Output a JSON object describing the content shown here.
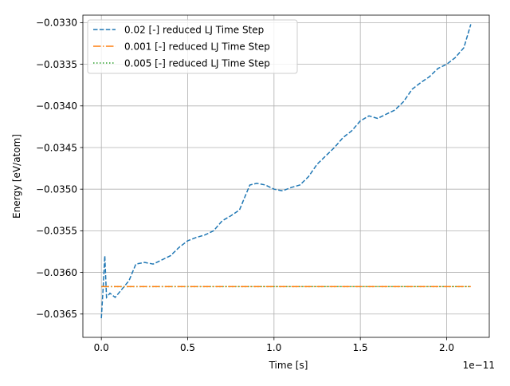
{
  "chart_data": {
    "type": "line",
    "xlabel": "Time [s]",
    "ylabel": "Energy [eV/atom]",
    "x_offset_label": "1e−11",
    "xlim": [
      -1.07e-12,
      2.247e-11
    ],
    "ylim": [
      -0.03678,
      -0.03291
    ],
    "x_ticks": [
      0.0,
      5e-12,
      1e-11,
      1.5e-11,
      2e-11
    ],
    "x_tick_labels": [
      "0.0",
      "0.5",
      "1.0",
      "1.5",
      "2.0"
    ],
    "y_ticks": [
      -0.0365,
      -0.036,
      -0.0355,
      -0.035,
      -0.0345,
      -0.034,
      -0.0335,
      -0.033
    ],
    "y_tick_labels": [
      "−0.0365",
      "−0.0360",
      "−0.0355",
      "−0.0350",
      "−0.0345",
      "−0.0340",
      "−0.0335",
      "−0.0330"
    ],
    "grid": true,
    "legend_position": "upper-left",
    "series": [
      {
        "name": "0.02 [-] reduced LJ Time Step",
        "color": "#1f77b4",
        "linestyle": "dashed",
        "x": [
          0,
          1e-13,
          2e-13,
          3e-13,
          5e-13,
          8e-13,
          1.2e-12,
          1.6e-12,
          2e-12,
          2.5e-12,
          3e-12,
          3.5e-12,
          4e-12,
          4.5e-12,
          5e-12,
          5.5e-12,
          6e-12,
          6.5e-12,
          7e-12,
          7.5e-12,
          8e-12,
          8.3e-12,
          8.6e-12,
          9e-12,
          9.5e-12,
          1e-11,
          1.05e-11,
          1.1e-11,
          1.15e-11,
          1.2e-11,
          1.25e-11,
          1.3e-11,
          1.35e-11,
          1.4e-11,
          1.45e-11,
          1.5e-11,
          1.55e-11,
          1.6e-11,
          1.65e-11,
          1.7e-11,
          1.75e-11,
          1.8e-11,
          1.85e-11,
          1.9e-11,
          1.95e-11,
          2e-11,
          2.05e-11,
          2.1e-11,
          2.14e-11
        ],
        "y": [
          -0.03655,
          -0.0362,
          -0.0358,
          -0.0363,
          -0.03625,
          -0.0363,
          -0.0362,
          -0.0361,
          -0.0359,
          -0.03588,
          -0.0359,
          -0.03585,
          -0.0358,
          -0.0357,
          -0.03562,
          -0.03558,
          -0.03555,
          -0.0355,
          -0.03538,
          -0.03532,
          -0.03525,
          -0.0351,
          -0.03495,
          -0.03493,
          -0.03495,
          -0.035,
          -0.03502,
          -0.03498,
          -0.03495,
          -0.03485,
          -0.0347,
          -0.0346,
          -0.0345,
          -0.03438,
          -0.0343,
          -0.03418,
          -0.03412,
          -0.03415,
          -0.0341,
          -0.03405,
          -0.03395,
          -0.0338,
          -0.03372,
          -0.03365,
          -0.03355,
          -0.0335,
          -0.03342,
          -0.0333,
          -0.03302
        ]
      },
      {
        "name": "0.001 [-] reduced LJ Time Step",
        "color": "#ff7f0e",
        "linestyle": "dashdot",
        "x": [
          0,
          2.14e-11
        ],
        "y": [
          -0.03617,
          -0.03617
        ]
      },
      {
        "name": "0.005 [-] reduced LJ Time Step",
        "color": "#2ca02c",
        "linestyle": "dotted",
        "x": [
          0,
          2.14e-11
        ],
        "y": [
          -0.03617,
          -0.03617
        ]
      }
    ]
  }
}
